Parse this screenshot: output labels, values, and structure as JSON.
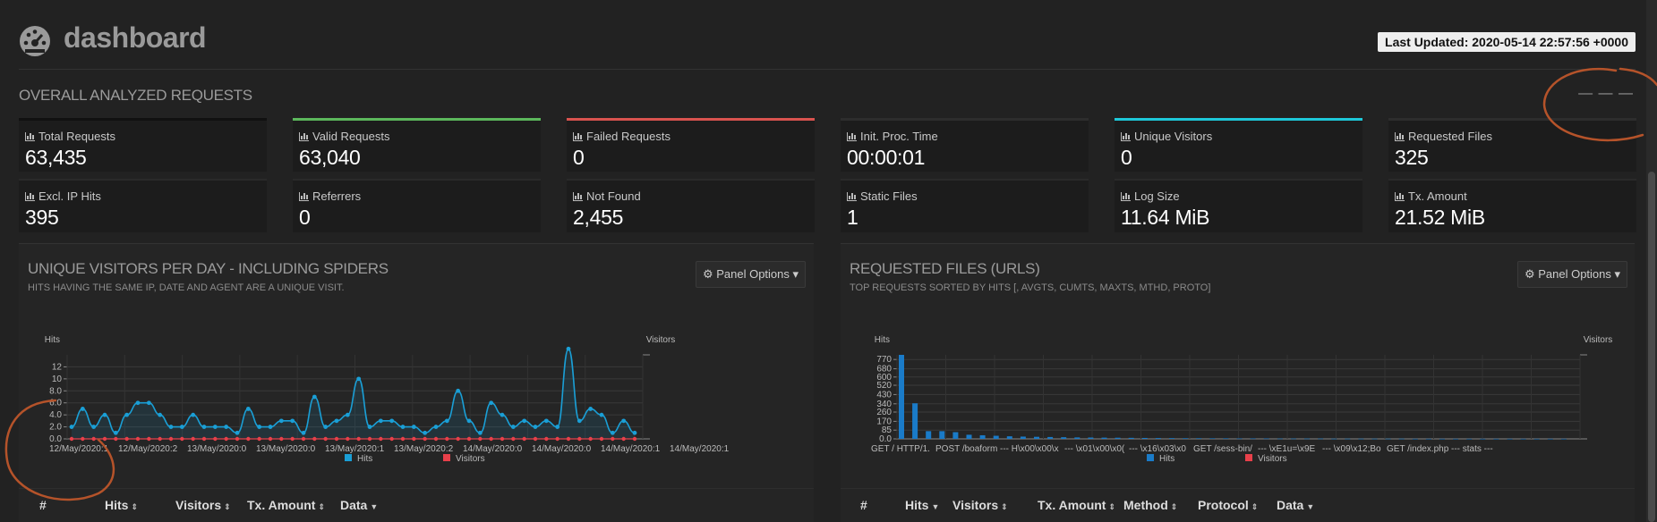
{
  "header": {
    "title": "dashboard",
    "last_updated": "Last Updated: 2020-05-14 22:57:56 +0000",
    "logo_icon": "dashboard-gauge-icon"
  },
  "overall": {
    "title": "OVERALL ANALYZED REQUESTS",
    "dashes": "— — —"
  },
  "stats": [
    {
      "label": "Total Requests",
      "value": "63,435",
      "color": "#111111"
    },
    {
      "label": "Valid Requests",
      "value": "63,040",
      "color": "#5cb85c"
    },
    {
      "label": "Failed Requests",
      "value": "0",
      "color": "#d9534f"
    },
    {
      "label": "Init. Proc. Time",
      "value": "00:00:01",
      "color": "#2d2d2d"
    },
    {
      "label": "Unique Visitors",
      "value": "0",
      "color": "#1ec8d8"
    },
    {
      "label": "Requested Files",
      "value": "325",
      "color": "#2d2d2d"
    },
    {
      "label": "Excl. IP Hits",
      "value": "395"
    },
    {
      "label": "Referrers",
      "value": "0"
    },
    {
      "label": "Not Found",
      "value": "2,455"
    },
    {
      "label": "Static Files",
      "value": "1"
    },
    {
      "label": "Log Size",
      "value": "11.64 MiB"
    },
    {
      "label": "Tx. Amount",
      "value": "21.52 MiB"
    }
  ],
  "visitors_panel": {
    "title": "UNIQUE VISITORS PER DAY - INCLUDING SPIDERS",
    "subtitle": "HITS HAVING THE SAME IP, DATE AND AGENT ARE A UNIQUE VISIT.",
    "options_label": "Panel Options",
    "table_headers": [
      "#",
      "Hits",
      "Visitors",
      "Tx. Amount",
      "Data"
    ]
  },
  "files_panel": {
    "title": "REQUESTED FILES (URLS)",
    "subtitle": "TOP REQUESTS SORTED BY HITS [, AVGTS, CUMTS, MAXTS, MTHD, PROTO]",
    "options_label": "Panel Options",
    "table_headers": [
      "#",
      "Hits",
      "Visitors",
      "Tx. Amount",
      "Method",
      "Protocol",
      "Data"
    ]
  },
  "chart_data": [
    {
      "type": "line",
      "ylabel": "Hits",
      "y2label": "Visitors",
      "yticks": [
        "0.0",
        "2.0",
        "4.0",
        "6.0",
        "8.0",
        "10",
        "12"
      ],
      "ylim": [
        0,
        14
      ],
      "xticks": [
        "12/May/2020:1",
        "12/May/2020:2",
        "13/May/2020:0",
        "13/May/2020:0",
        "13/May/2020:1",
        "13/May/2020:2",
        "14/May/2020:0",
        "14/May/2020:0",
        "14/May/2020:1",
        "14/May/2020:1"
      ],
      "series": [
        {
          "name": "Hits",
          "color": "#1a9fd6",
          "values": [
            2,
            5,
            2,
            4,
            1,
            4,
            6,
            6,
            4,
            2,
            2,
            4,
            2,
            2,
            2,
            1,
            5,
            2,
            2,
            3,
            3,
            1,
            7,
            2,
            3,
            4,
            10,
            2,
            3,
            3,
            2,
            2,
            1,
            2,
            3,
            8,
            3,
            1,
            6,
            4,
            2,
            3,
            2,
            3,
            2,
            15,
            3,
            5,
            4,
            1,
            3,
            1
          ]
        },
        {
          "name": "Visitors",
          "color": "#e8404a",
          "values": [
            0,
            0,
            0,
            0,
            0,
            0,
            0,
            0,
            0,
            0,
            0,
            0,
            0,
            0,
            0,
            0,
            0,
            0,
            0,
            0,
            0,
            0,
            0,
            0,
            0,
            0,
            0,
            0,
            0,
            0,
            0,
            0,
            0,
            0,
            0,
            0,
            0,
            0,
            0,
            0,
            0,
            0,
            0,
            0,
            0,
            0,
            0,
            0,
            0,
            0,
            0,
            0
          ]
        }
      ],
      "grid": true,
      "legend": "bottom-center"
    },
    {
      "type": "bar",
      "ylabel": "Hits",
      "y2label": "Visitors",
      "yticks": [
        "0.0",
        "85",
        "170",
        "260",
        "340",
        "430",
        "520",
        "600",
        "680",
        "770"
      ],
      "ylim": [
        0,
        815
      ],
      "xticks": [
        "GET / HTTP/1.",
        "POST /boaform",
        "--- H\\x00\\x00\\x",
        "--- \\x01\\x00\\x0(",
        "--- \\x16\\x03\\x0",
        "GET /sess-bin/",
        "--- \\xE1u=\\x9E",
        "--- \\x09\\x12;Bo",
        "GET /index.php",
        "--- stats ---"
      ],
      "series": [
        {
          "name": "Hits",
          "color": "#1a7bc8",
          "values": [
            815,
            345,
            75,
            75,
            65,
            40,
            35,
            30,
            25,
            22,
            20,
            18,
            16,
            14,
            13,
            12,
            11,
            10,
            9,
            8,
            7,
            6,
            6,
            5,
            5,
            4,
            4,
            4,
            3,
            3,
            3,
            3,
            2,
            2,
            2,
            2,
            2,
            2,
            1,
            1,
            1,
            1,
            1,
            1,
            1,
            1,
            1,
            1,
            1,
            1
          ]
        },
        {
          "name": "Visitors",
          "color": "#e8404a",
          "values": []
        }
      ],
      "grid": true,
      "legend": "bottom-center"
    }
  ]
}
